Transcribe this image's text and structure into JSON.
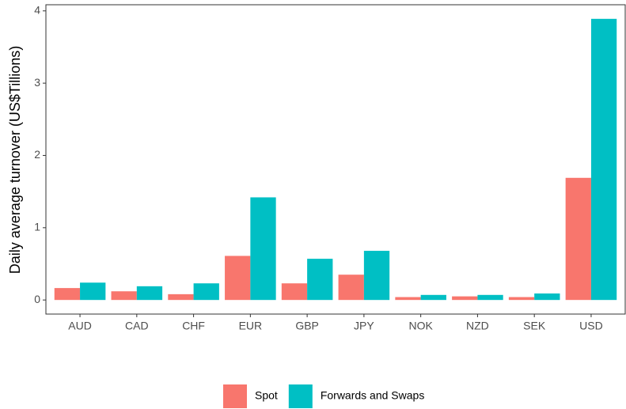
{
  "chart_data": {
    "type": "bar",
    "y_label": "Daily average turnover (US$Tillions)",
    "categories": [
      "AUD",
      "CAD",
      "CHF",
      "EUR",
      "GBP",
      "JPY",
      "NOK",
      "NZD",
      "SEK",
      "USD"
    ],
    "series": [
      {
        "name": "Spot",
        "color": "#F8766D",
        "values": [
          0.165,
          0.12,
          0.08,
          0.61,
          0.23,
          0.35,
          0.04,
          0.05,
          0.04,
          1.69
        ]
      },
      {
        "name": "Forwards and Swaps",
        "color": "#00BFC4",
        "values": [
          0.24,
          0.19,
          0.23,
          1.42,
          0.57,
          0.68,
          0.07,
          0.07,
          0.09,
          3.89
        ]
      }
    ],
    "ylim": [
      -0.195,
      4.085
    ],
    "yticks": [
      0,
      1,
      2,
      3,
      4
    ],
    "grid": false,
    "legend": "bottom"
  }
}
